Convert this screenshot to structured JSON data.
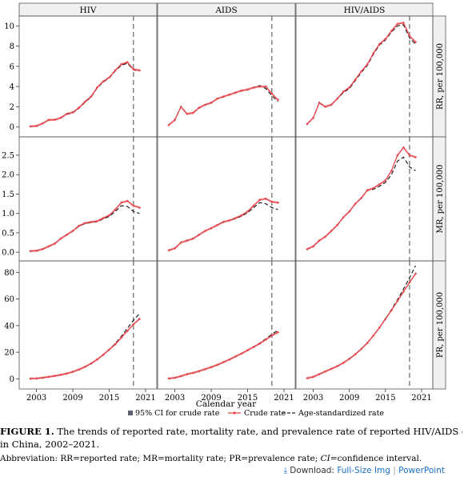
{
  "chart_data": {
    "type": "line",
    "panel_type": "small-multiples",
    "column_titles": [
      "HIV",
      "AIDS",
      "HIV/AIDS"
    ],
    "row_labels": [
      "RR, per 100,000",
      "MR, per 100,000",
      "PR, per 100,000"
    ],
    "xlabel": "Calendar year",
    "xticks": [
      2003,
      2009,
      2015,
      2021
    ],
    "xlim": [
      2002,
      2021
    ],
    "reference_line_x": 2019,
    "rows": [
      {
        "ylim": [
          -0.5,
          10.5
        ],
        "yticks": [
          0,
          2,
          4,
          6,
          8,
          10
        ]
      },
      {
        "ylim": [
          -0.1,
          2.85
        ],
        "yticks": [
          0.0,
          0.5,
          1.0,
          1.5,
          2.0,
          2.5
        ]
      },
      {
        "ylim": [
          -4,
          85
        ],
        "yticks": [
          0,
          20,
          40,
          60,
          80
        ]
      }
    ],
    "x": [
      2002,
      2003,
      2004,
      2005,
      2006,
      2007,
      2008,
      2009,
      2010,
      2011,
      2012,
      2013,
      2014,
      2015,
      2016,
      2017,
      2018,
      2019,
      2020,
      2021
    ],
    "panels": [
      {
        "row": 0,
        "col": 0,
        "crude": [
          0.06,
          0.1,
          0.35,
          0.7,
          0.72,
          0.9,
          1.3,
          1.45,
          1.9,
          2.5,
          3.0,
          3.9,
          4.5,
          4.9,
          5.6,
          6.2,
          6.4,
          5.7,
          5.6,
          null
        ],
        "age_standardized": [
          0.06,
          0.1,
          0.35,
          0.7,
          0.7,
          0.9,
          1.25,
          1.4,
          1.85,
          2.45,
          2.95,
          3.85,
          4.45,
          4.85,
          5.55,
          6.1,
          6.3,
          5.65,
          5.55,
          null
        ]
      },
      {
        "row": 0,
        "col": 1,
        "crude": [
          0.2,
          0.7,
          2.0,
          1.3,
          1.4,
          1.9,
          2.2,
          2.4,
          2.8,
          3.0,
          3.2,
          3.4,
          3.6,
          3.7,
          3.9,
          4.0,
          4.0,
          3.3,
          2.7,
          null
        ],
        "age_standardized": [
          0.2,
          0.7,
          2.0,
          1.3,
          1.4,
          1.9,
          2.2,
          2.4,
          2.8,
          3.0,
          3.2,
          3.4,
          3.6,
          3.7,
          3.9,
          4.1,
          3.8,
          3.1,
          2.5,
          null
        ]
      },
      {
        "row": 0,
        "col": 2,
        "crude": [
          0.3,
          0.9,
          2.4,
          2.0,
          2.2,
          2.8,
          3.5,
          3.9,
          4.7,
          5.5,
          6.2,
          7.3,
          8.2,
          8.7,
          9.5,
          10.2,
          10.3,
          9.0,
          8.4,
          null
        ],
        "age_standardized": [
          0.3,
          0.9,
          2.4,
          2.0,
          2.2,
          2.8,
          3.4,
          3.8,
          4.6,
          5.4,
          6.1,
          7.2,
          8.1,
          8.6,
          9.4,
          10.0,
          10.1,
          8.8,
          8.2,
          null
        ]
      },
      {
        "row": 1,
        "col": 0,
        "crude": [
          0.03,
          0.04,
          0.08,
          0.15,
          0.22,
          0.35,
          0.45,
          0.55,
          0.68,
          0.75,
          0.78,
          0.8,
          0.88,
          0.95,
          1.1,
          1.28,
          1.32,
          1.2,
          1.15,
          null
        ],
        "age_standardized": [
          0.03,
          0.04,
          0.08,
          0.15,
          0.22,
          0.35,
          0.45,
          0.55,
          0.67,
          0.74,
          0.77,
          0.79,
          0.86,
          0.92,
          1.05,
          1.2,
          1.18,
          1.05,
          1.0,
          null
        ]
      },
      {
        "row": 1,
        "col": 1,
        "crude": [
          0.05,
          0.1,
          0.25,
          0.3,
          0.35,
          0.45,
          0.55,
          0.62,
          0.7,
          0.78,
          0.82,
          0.88,
          0.95,
          1.05,
          1.2,
          1.35,
          1.38,
          1.3,
          1.28,
          null
        ],
        "age_standardized": [
          0.05,
          0.1,
          0.25,
          0.3,
          0.35,
          0.45,
          0.55,
          0.62,
          0.7,
          0.78,
          0.82,
          0.87,
          0.93,
          1.02,
          1.15,
          1.28,
          1.25,
          1.15,
          1.1,
          null
        ]
      },
      {
        "row": 1,
        "col": 2,
        "crude": [
          0.08,
          0.15,
          0.3,
          0.4,
          0.55,
          0.7,
          0.9,
          1.05,
          1.25,
          1.4,
          1.6,
          1.65,
          1.75,
          1.85,
          2.1,
          2.5,
          2.7,
          2.5,
          2.45,
          null
        ],
        "age_standardized": [
          0.08,
          0.15,
          0.3,
          0.4,
          0.55,
          0.7,
          0.9,
          1.05,
          1.25,
          1.4,
          1.6,
          1.62,
          1.7,
          1.8,
          2.0,
          2.35,
          2.45,
          2.2,
          2.1,
          null
        ]
      },
      {
        "row": 2,
        "col": 0,
        "crude": [
          0.2,
          0.3,
          0.8,
          1.5,
          2.2,
          3.0,
          4.0,
          5.3,
          7.0,
          9.0,
          11.5,
          14.5,
          18.0,
          22.0,
          26.0,
          31.0,
          36.0,
          41.0,
          45.0,
          null
        ],
        "age_standardized": [
          0.2,
          0.3,
          0.8,
          1.5,
          2.2,
          3.0,
          4.0,
          5.3,
          7.0,
          9.0,
          11.5,
          14.5,
          18.0,
          22.0,
          26.5,
          32.0,
          38.0,
          44.0,
          49.0,
          null
        ]
      },
      {
        "row": 2,
        "col": 1,
        "crude": [
          0.3,
          0.8,
          2.0,
          3.5,
          4.5,
          5.8,
          7.3,
          8.8,
          10.5,
          12.5,
          14.5,
          16.8,
          19.0,
          21.5,
          24.0,
          26.5,
          29.5,
          32.5,
          35.0,
          null
        ],
        "age_standardized": [
          0.3,
          0.8,
          2.0,
          3.5,
          4.5,
          5.8,
          7.3,
          8.8,
          10.5,
          12.5,
          14.5,
          16.8,
          19.0,
          21.5,
          24.0,
          26.8,
          30.0,
          33.5,
          36.5,
          null
        ]
      },
      {
        "row": 2,
        "col": 2,
        "crude": [
          0.5,
          1.5,
          3.5,
          5.5,
          7.5,
          9.5,
          12.0,
          15.0,
          18.5,
          22.5,
          27.0,
          32.5,
          38.5,
          45.0,
          51.5,
          58.5,
          65.5,
          72.5,
          79.0,
          null
        ],
        "age_standardized": [
          0.5,
          1.5,
          3.5,
          5.5,
          7.5,
          9.5,
          12.0,
          15.0,
          18.5,
          22.5,
          27.0,
          32.5,
          38.5,
          45.0,
          52.0,
          59.5,
          67.5,
          76.0,
          85.0,
          null
        ]
      }
    ],
    "legend": {
      "position": "bottom",
      "items": [
        {
          "label": "95% CI for crude rate",
          "style": "square"
        },
        {
          "label": "Crude rate",
          "style": "line-marker"
        },
        {
          "label": "Age-standardized rate",
          "style": "dashed"
        }
      ]
    },
    "colors": {
      "crude": "#e8474c",
      "ci": "#f2b0b3",
      "age_standardized": "#222222",
      "reference": "#666666"
    }
  },
  "caption": {
    "label": "FIGURE 1.",
    "text": " The trends of reported rate, mortality rate, and prevalence rate of reported HIV/AIDS cases",
    "text2": "in China, 2002–2021."
  },
  "abbreviation": {
    "prefix": "Abbreviation: RR=reported rate; MR=mortality rate; PR=prevalence rate; ",
    "ci": "CI",
    "suffix": "=confidence interval."
  },
  "download": {
    "label": "Download:",
    "full_size": "Full-Size Img",
    "separator": "|",
    "powerpoint": "PowerPoint",
    "icon": "download-icon"
  }
}
